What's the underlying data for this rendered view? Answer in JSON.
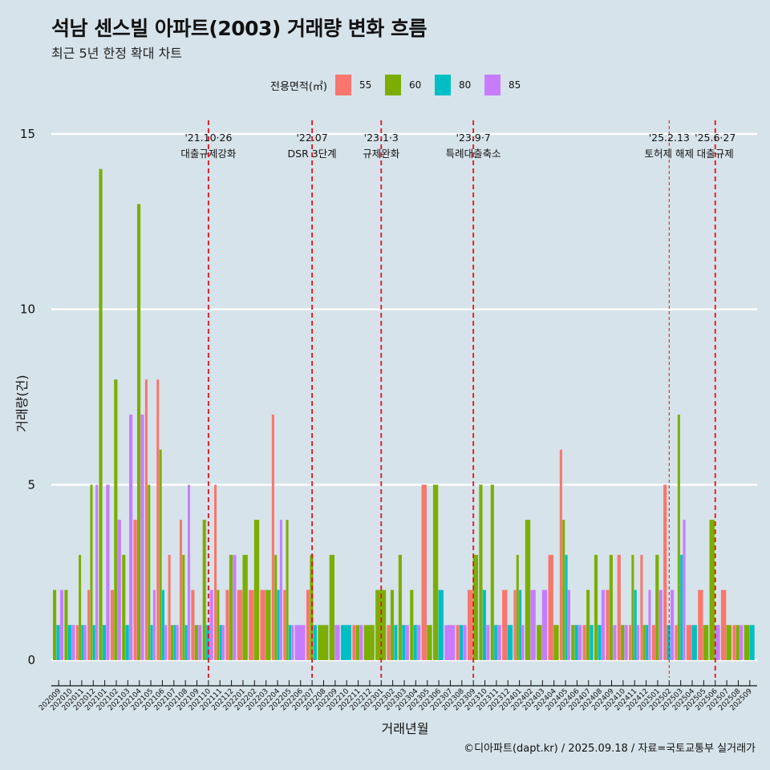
{
  "header": {
    "title": "석남 센스빌 아파트(2003) 거래량 변화 흐름",
    "subtitle": "최근 5년 한정 확대 차트"
  },
  "legend": {
    "title": "전용면적(㎡)",
    "items": [
      {
        "label": "55",
        "color": "#F8766D"
      },
      {
        "label": "60",
        "color": "#7CAE00"
      },
      {
        "label": "80",
        "color": "#00BFC4"
      },
      {
        "label": "85",
        "color": "#C77CFF"
      }
    ]
  },
  "caption": "©디아파트(dapt.kr) / 2025.09.18 / 자료=국토교통부 실거래가",
  "chart_data": {
    "type": "bar",
    "title": "석남 센스빌 아파트(2003) 거래량 변화 흐름",
    "subtitle": "최근 5년 한정 확대 차트",
    "xlabel": "거래년월",
    "ylabel": "거래량(건)",
    "ylim": [
      0,
      15
    ],
    "yticks": [
      0,
      5,
      10,
      15
    ],
    "grid": "horizontal major",
    "legend_position": "top",
    "categories": [
      "202009",
      "202010",
      "202011",
      "202012",
      "202101",
      "202102",
      "202103",
      "202104",
      "202105",
      "202106",
      "202107",
      "202108",
      "202109",
      "202110",
      "202111",
      "202112",
      "202201",
      "202202",
      "202203",
      "202204",
      "202205",
      "202206",
      "202207",
      "202208",
      "202209",
      "202210",
      "202211",
      "202212",
      "202301",
      "202302",
      "202303",
      "202304",
      "202305",
      "202306",
      "202307",
      "202308",
      "202309",
      "202310",
      "202311",
      "202312",
      "202401",
      "202402",
      "202403",
      "202404",
      "202405",
      "202406",
      "202407",
      "202408",
      "202409",
      "202410",
      "202411",
      "202412",
      "202501",
      "202502",
      "202503",
      "202504",
      "202505",
      "202506",
      "202507",
      "202508",
      "202509"
    ],
    "series": [
      {
        "name": "55",
        "color": "#F8766D",
        "values": [
          0,
          0,
          1,
          2,
          0,
          2,
          0,
          4,
          8,
          8,
          3,
          4,
          2,
          0,
          5,
          2,
          2,
          2,
          2,
          7,
          2,
          0,
          2,
          0,
          0,
          0,
          1,
          0,
          0,
          1,
          0,
          0,
          5,
          0,
          0,
          1,
          2,
          0,
          0,
          2,
          2,
          0,
          0,
          3,
          6,
          0,
          1,
          0,
          2,
          3,
          1,
          3,
          1,
          5,
          1,
          1,
          2,
          0,
          2,
          1,
          0
        ]
      },
      {
        "name": "60",
        "color": "#7CAE00",
        "values": [
          2,
          2,
          3,
          5,
          14,
          8,
          3,
          13,
          5,
          6,
          1,
          3,
          1,
          4,
          2,
          3,
          3,
          4,
          2,
          3,
          4,
          0,
          3,
          1,
          3,
          0,
          1,
          1,
          2,
          2,
          3,
          2,
          1,
          5,
          0,
          0,
          3,
          5,
          5,
          0,
          3,
          4,
          1,
          1,
          4,
          1,
          2,
          3,
          3,
          1,
          3,
          1,
          3,
          0,
          7,
          0,
          1,
          4,
          1,
          1,
          1
        ]
      },
      {
        "name": "80",
        "color": "#00BFC4",
        "values": [
          1,
          1,
          1,
          1,
          1,
          0,
          1,
          0,
          1,
          2,
          1,
          1,
          0,
          1,
          1,
          0,
          0,
          0,
          0,
          2,
          1,
          0,
          1,
          0,
          0,
          1,
          0,
          0,
          0,
          1,
          1,
          1,
          0,
          2,
          0,
          1,
          0,
          2,
          1,
          1,
          2,
          0,
          0,
          0,
          3,
          1,
          1,
          1,
          0,
          0,
          2,
          1,
          0,
          1,
          3,
          1,
          0,
          0,
          0,
          0,
          1
        ]
      },
      {
        "name": "85",
        "color": "#C77CFF",
        "values": [
          2,
          1,
          1,
          5,
          5,
          4,
          7,
          7,
          2,
          1,
          1,
          5,
          1,
          2,
          1,
          3,
          0,
          0,
          0,
          4,
          1,
          1,
          0,
          0,
          1,
          0,
          1,
          0,
          0,
          0,
          1,
          1,
          0,
          0,
          1,
          1,
          0,
          1,
          1,
          0,
          1,
          2,
          2,
          0,
          2,
          1,
          0,
          2,
          1,
          1,
          1,
          2,
          2,
          2,
          4,
          0,
          0,
          1,
          0,
          1,
          0
        ]
      }
    ],
    "annotations": [
      {
        "month": "202110",
        "date": "'21.10·26",
        "label": "대출규제강화",
        "line": "thick"
      },
      {
        "month": "202207",
        "date": "'22.07",
        "label": "DSR 3단계",
        "line": "thick"
      },
      {
        "month": "202301",
        "date": "'23.1·3",
        "label": "규제완화",
        "line": "thick"
      },
      {
        "month": "202309",
        "date": "'23.9·7",
        "label": "특례대출축소",
        "line": "thick"
      },
      {
        "month": "202502",
        "date": "'25.2.13",
        "label": "토허제 해제",
        "line": "thin"
      },
      {
        "month": "202506",
        "date": "'25.6·27",
        "label": "대출규제",
        "line": "thick"
      }
    ],
    "annotation_color": "#E8101A"
  }
}
